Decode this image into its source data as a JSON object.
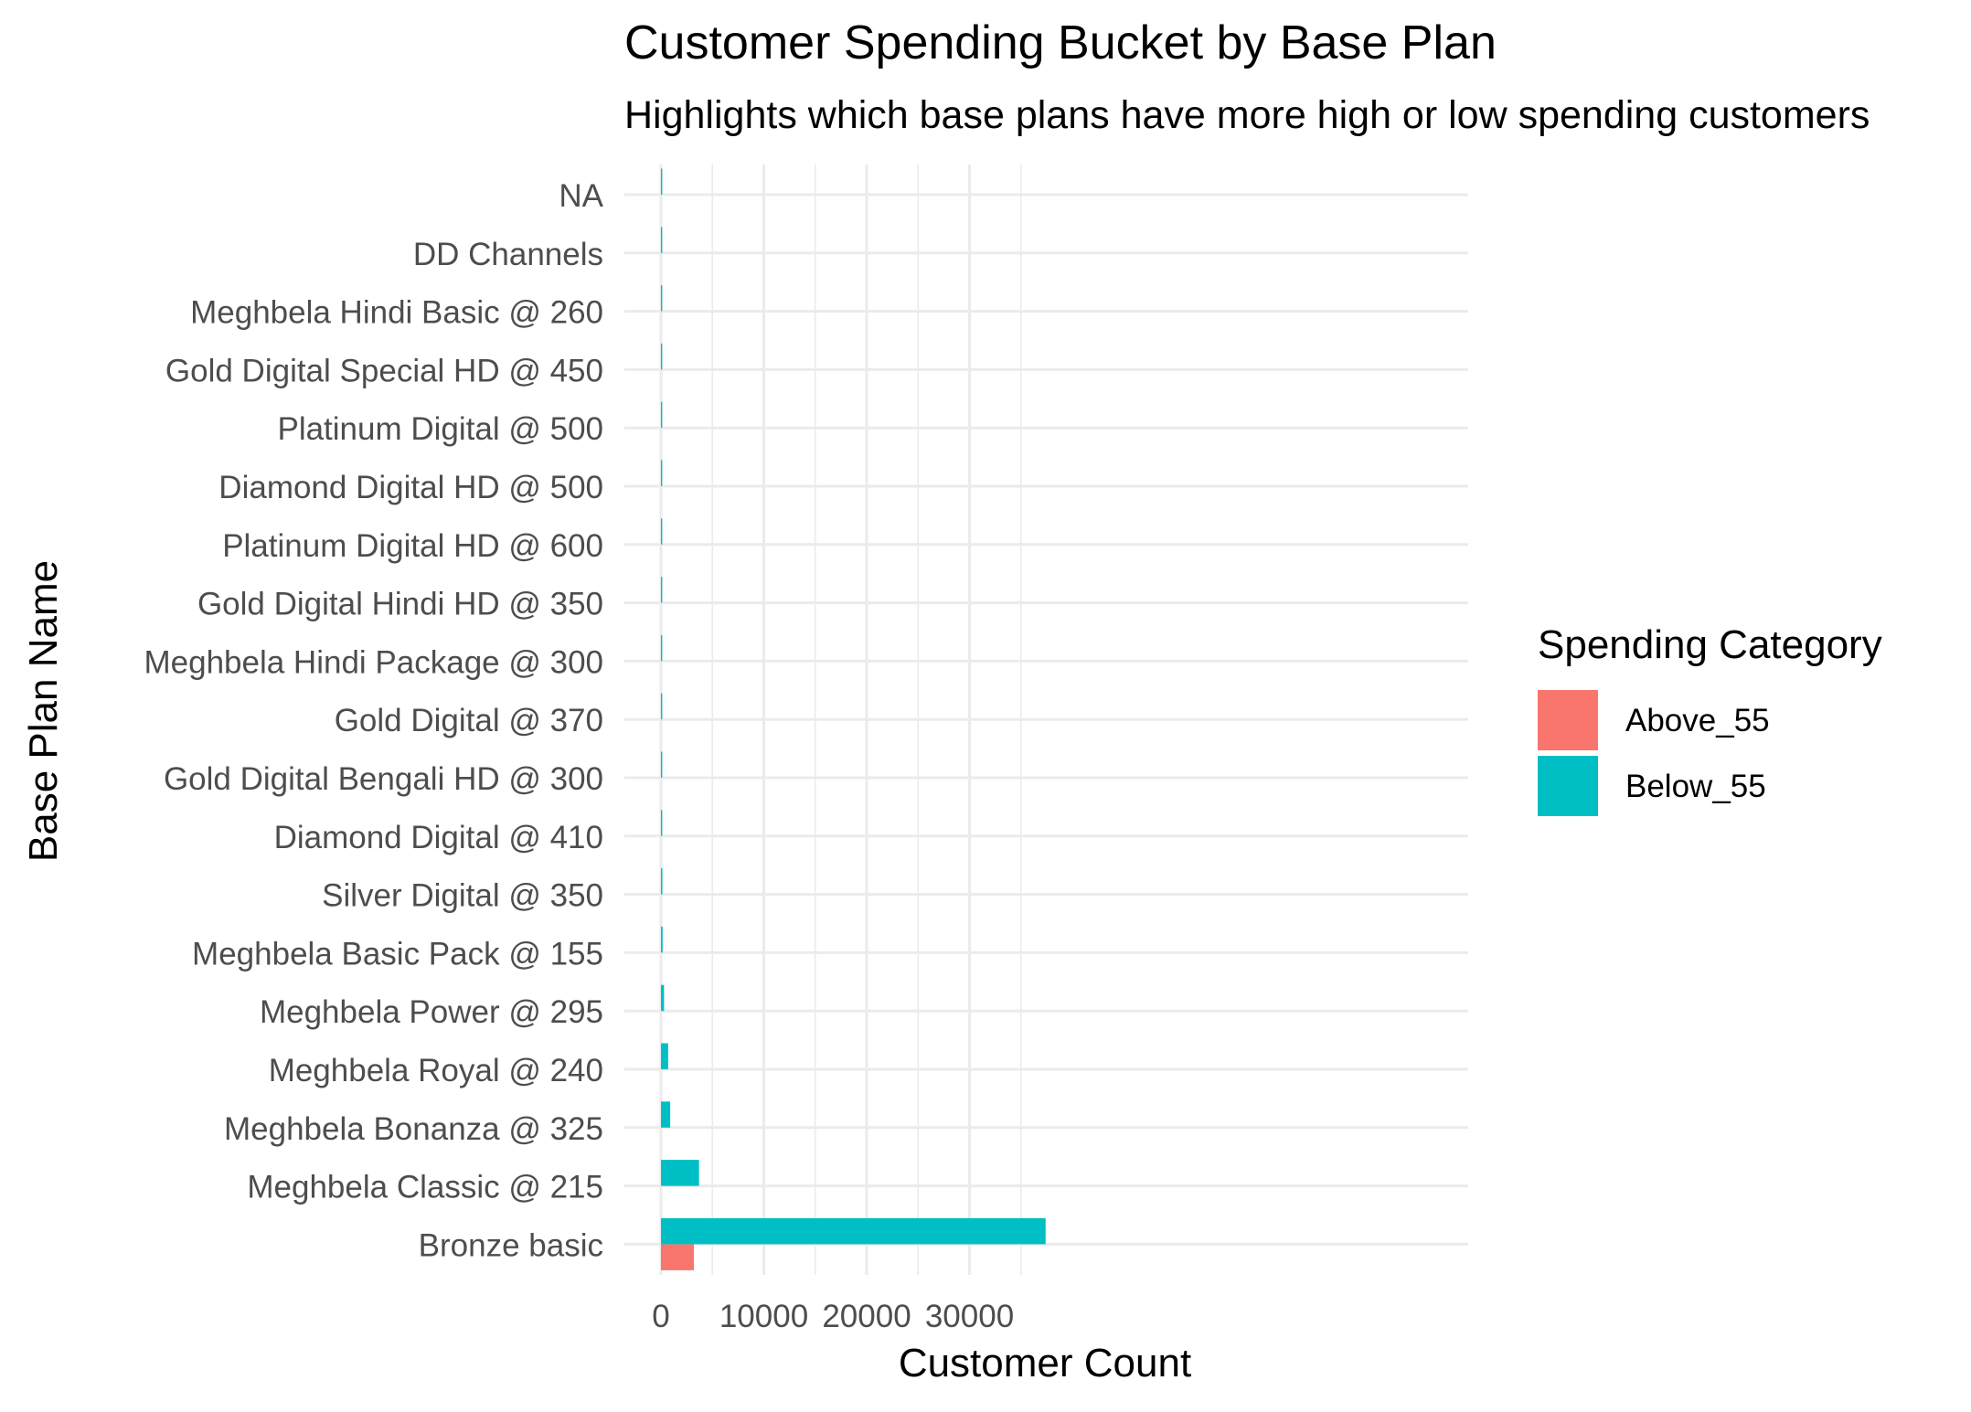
{
  "chart_data": {
    "type": "bar",
    "orientation": "horizontal",
    "bar_layout": "dodged",
    "title": "Customer Spending Bucket by Base Plan",
    "subtitle": "Highlights which base plans have more high or low spending customers",
    "xlabel": "Customer Count",
    "ylabel": "Base Plan Name",
    "xlim": [
      0,
      39000
    ],
    "x_ticks": [
      0,
      10000,
      20000,
      30000
    ],
    "grid": true,
    "theme": "minimal",
    "legend": {
      "title": "Spending Category",
      "position": "right"
    },
    "categories": [
      "Bronze basic",
      "Meghbela Classic @ 215",
      "Meghbela Bonanza @ 325",
      "Meghbela Royal @ 240",
      "Meghbela Power @ 295",
      "Meghbela Basic Pack @ 155",
      "Silver Digital @ 350",
      "Diamond Digital @ 410",
      "Gold Digital Bengali HD @ 300",
      "Gold Digital @ 370",
      "Meghbela Hindi Package @ 300",
      "Gold Digital Hindi HD @ 350",
      "Platinum Digital HD @ 600",
      "Diamond Digital HD @ 500",
      "Platinum Digital @ 500",
      "Gold Digital Special HD @ 450",
      "Meghbela Hindi Basic @ 260",
      "DD Channels",
      "NA"
    ],
    "series": [
      {
        "name": "Above_55",
        "color": "#F8766D",
        "values": [
          3200,
          0,
          0,
          0,
          0,
          0,
          0,
          0,
          0,
          0,
          0,
          0,
          0,
          0,
          0,
          0,
          0,
          0,
          0
        ]
      },
      {
        "name": "Below_55",
        "color": "#00BFC4",
        "values": [
          37400,
          3700,
          900,
          700,
          300,
          160,
          140,
          120,
          110,
          90,
          80,
          30,
          80,
          70,
          10,
          5,
          5,
          5,
          5
        ]
      }
    ]
  }
}
